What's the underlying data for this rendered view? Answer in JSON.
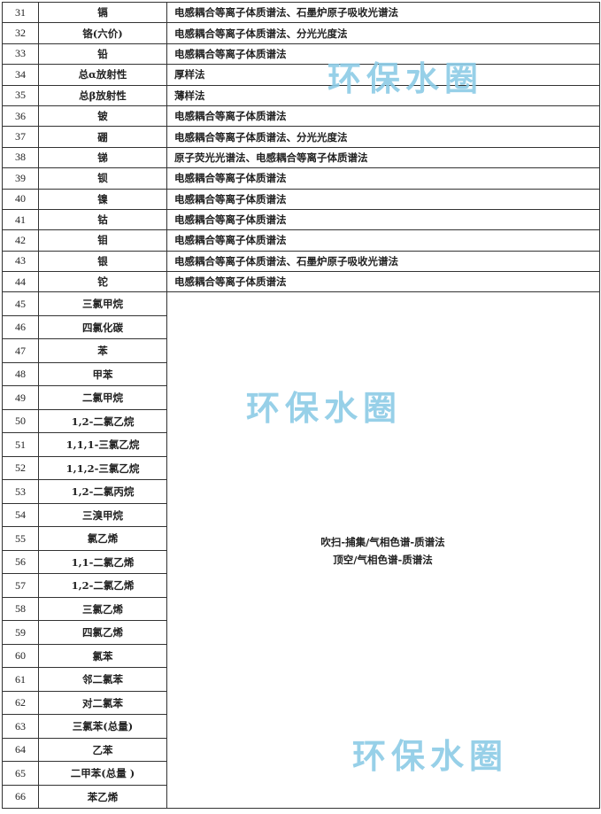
{
  "rows_top": [
    {
      "no": "31",
      "item": "镉",
      "method": "电感耦合等离子体质谱法、石墨炉原子吸收光谱法"
    },
    {
      "no": "32",
      "item": "铬(六价)",
      "method": "电感耦合等离子体质谱法、分光光度法"
    },
    {
      "no": "33",
      "item": "铅",
      "method": "电感耦合等离子体质谱法"
    },
    {
      "no": "34",
      "item": "总α放射性",
      "method": "厚样法"
    },
    {
      "no": "35",
      "item": "总β放射性",
      "method": "薄样法"
    },
    {
      "no": "36",
      "item": "铍",
      "method": "电感耦合等离子体质谱法"
    },
    {
      "no": "37",
      "item": "硼",
      "method": "电感耦合等离子体质谱法、分光光度法"
    },
    {
      "no": "38",
      "item": "锑",
      "method": "原子荧光光谱法、电感耦合等离子体质谱法"
    },
    {
      "no": "39",
      "item": "钡",
      "method": "电感耦合等离子体质谱法"
    },
    {
      "no": "40",
      "item": "镍",
      "method": "电感耦合等离子体质谱法"
    },
    {
      "no": "41",
      "item": "钴",
      "method": "电感耦合等离子体质谱法"
    },
    {
      "no": "42",
      "item": "钼",
      "method": "电感耦合等离子体质谱法"
    },
    {
      "no": "43",
      "item": "银",
      "method": "电感耦合等离子体质谱法、石墨炉原子吸收光谱法"
    },
    {
      "no": "44",
      "item": "铊",
      "method": "电感耦合等离子体质谱法"
    }
  ],
  "rows_bottom": [
    {
      "no": "45",
      "item": "三氯甲烷"
    },
    {
      "no": "46",
      "item": "四氯化碳"
    },
    {
      "no": "47",
      "item": "苯"
    },
    {
      "no": "48",
      "item": "甲苯"
    },
    {
      "no": "49",
      "item": "二氯甲烷"
    },
    {
      "no": "50",
      "item": "1,2-二氯乙烷"
    },
    {
      "no": "51",
      "item": "1,1,1-三氯乙烷"
    },
    {
      "no": "52",
      "item": "1,1,2-三氯乙烷"
    },
    {
      "no": "53",
      "item": "1,2-二氯丙烷"
    },
    {
      "no": "54",
      "item": "三溴甲烷"
    },
    {
      "no": "55",
      "item": "氯乙烯"
    },
    {
      "no": "56",
      "item": "1,1-二氯乙烯"
    },
    {
      "no": "57",
      "item": "1,2-二氯乙烯"
    },
    {
      "no": "58",
      "item": "三氯乙烯"
    },
    {
      "no": "59",
      "item": "四氯乙烯"
    },
    {
      "no": "60",
      "item": "氯苯"
    },
    {
      "no": "61",
      "item": "邻二氯苯"
    },
    {
      "no": "62",
      "item": "对二氯苯"
    },
    {
      "no": "63",
      "item": "三氯苯(总量)"
    },
    {
      "no": "64",
      "item": "乙苯"
    },
    {
      "no": "65",
      "item": "二甲苯(总量 )"
    },
    {
      "no": "66",
      "item": "苯乙烯"
    }
  ],
  "merged_method": [
    "吹扫-捕集/气相色谱-质谱法",
    "顶空/气相色谱-质谱法"
  ],
  "watermark": "环保水圈",
  "colors": {
    "watermark": "#8ccbe6",
    "border": "#333333"
  }
}
